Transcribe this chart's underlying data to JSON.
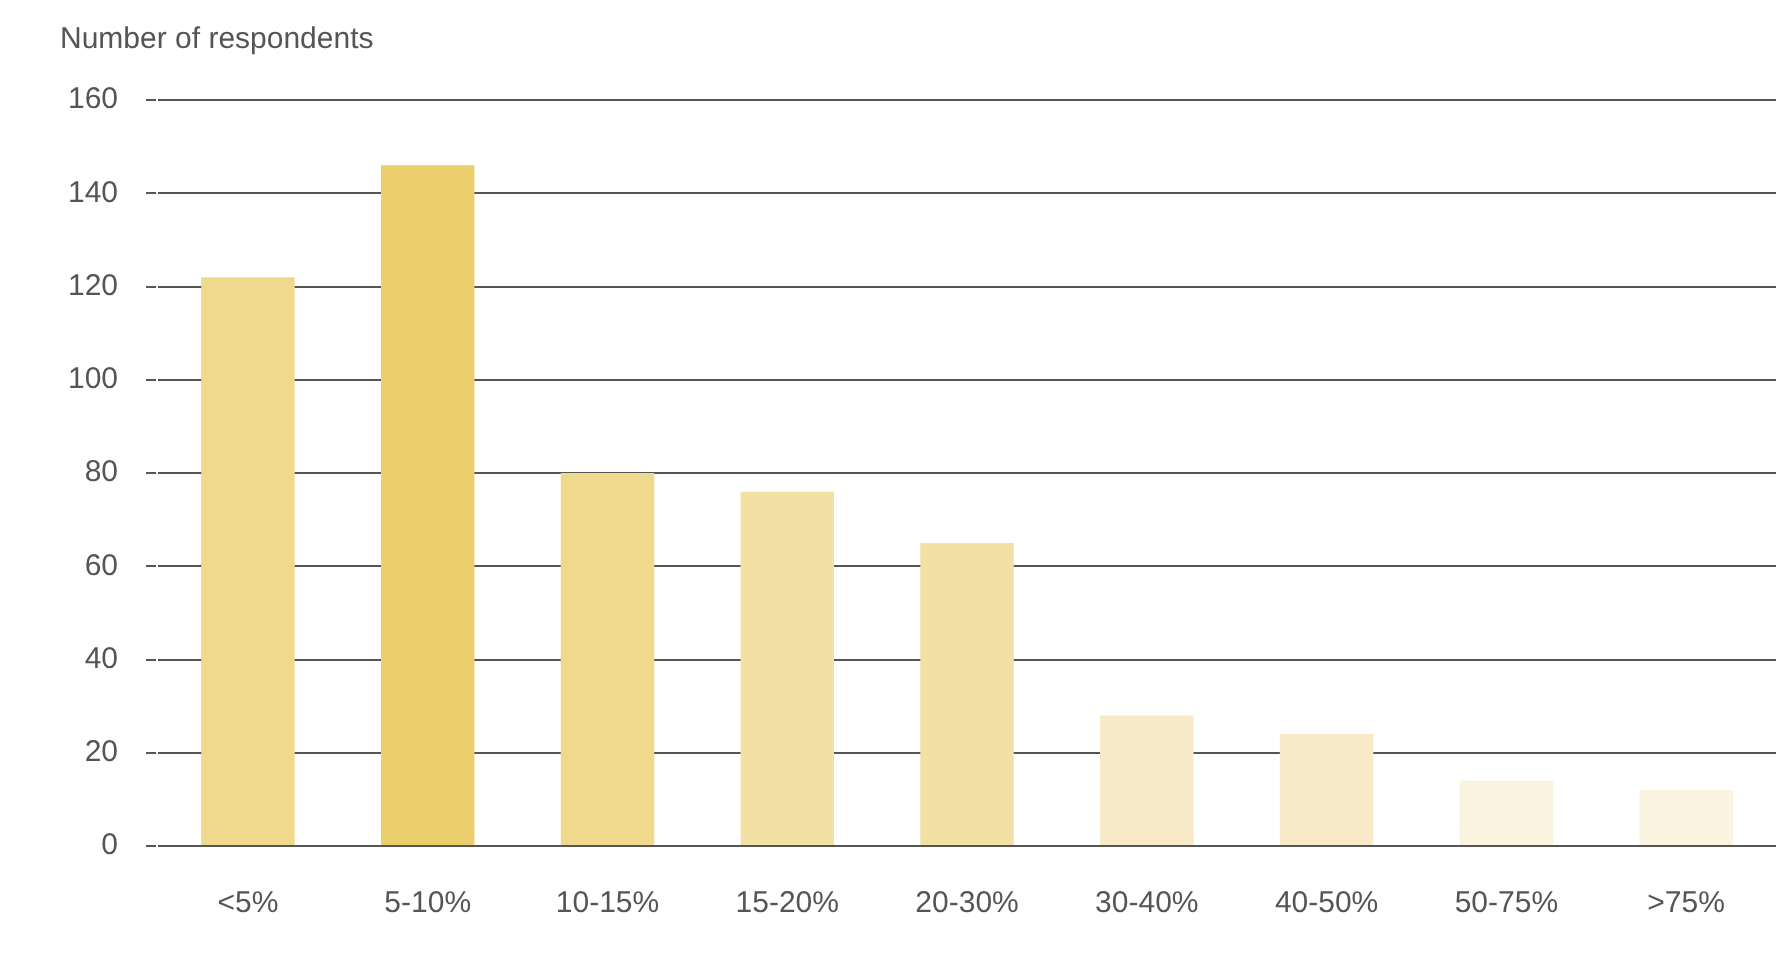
{
  "chart_data": {
    "type": "bar",
    "ylabel": "Number of respondents",
    "categories": [
      "<5%",
      "5-10%",
      "10-15%",
      "15-20%",
      "20-30%",
      "30-40%",
      "40-50%",
      "50-75%",
      ">75%"
    ],
    "values": [
      122,
      146,
      80,
      76,
      65,
      28,
      24,
      14,
      12
    ],
    "colors": [
      "#efd98d",
      "#ebcf6d",
      "#efd98d",
      "#f3e0a5",
      "#f3e0a5",
      "#f7eac8",
      "#f7eac8",
      "#fbf4e0",
      "#fbf4e0"
    ],
    "ylim": [
      0,
      160
    ],
    "yticks": [
      0,
      20,
      40,
      60,
      80,
      100,
      120,
      140,
      160
    ],
    "grid": "y",
    "legend": false
  }
}
